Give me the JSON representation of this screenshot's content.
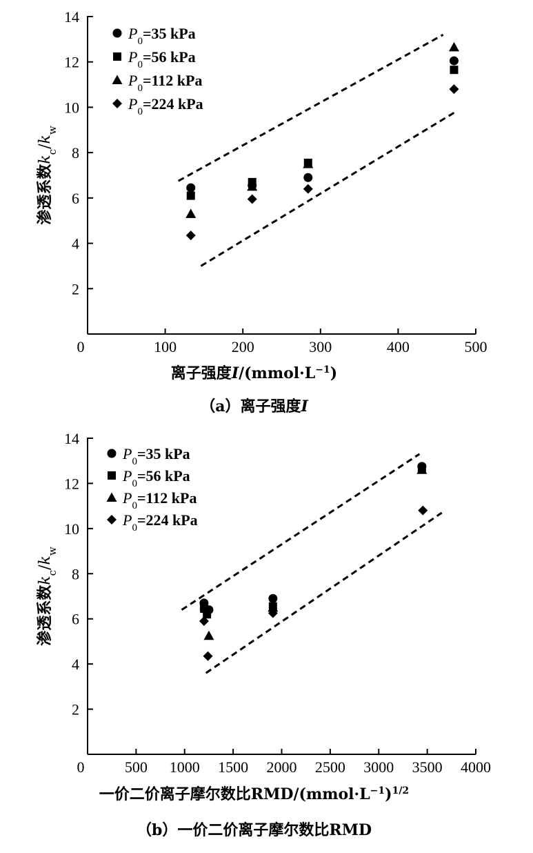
{
  "chart_data": [
    {
      "type": "scatter",
      "panel": "a",
      "caption": "（a）离子强度I",
      "xlabel": "离子强度I/(mmol·L⁻¹)",
      "ylabel": "渗透系数kc/kw",
      "xlim": [
        0,
        500
      ],
      "ylim": [
        0,
        14
      ],
      "xticks": [
        0,
        100,
        200,
        300,
        400,
        500
      ],
      "yticks": [
        2,
        4,
        6,
        8,
        10,
        12,
        14
      ],
      "legend_position": "top-left",
      "series": [
        {
          "name": "P0=35 kPa",
          "marker": "circle",
          "x": [
            133,
            212,
            284,
            472
          ],
          "y": [
            6.45,
            6.55,
            6.9,
            12.05
          ]
        },
        {
          "name": "P0=56 kPa",
          "marker": "square",
          "x": [
            133,
            212,
            284,
            472
          ],
          "y": [
            6.1,
            6.7,
            7.55,
            11.65
          ]
        },
        {
          "name": "P0=112 kPa",
          "marker": "triangle",
          "x": [
            133,
            212,
            284,
            472
          ],
          "y": [
            5.3,
            6.5,
            7.5,
            12.65
          ]
        },
        {
          "name": "P0=224 kPa",
          "marker": "diamond",
          "x": [
            133,
            212,
            284,
            472
          ],
          "y": [
            4.35,
            5.95,
            6.4,
            10.8
          ]
        }
      ],
      "bounds": [
        {
          "name": "upper",
          "x": [
            117,
            458
          ],
          "y": [
            6.75,
            13.2
          ]
        },
        {
          "name": "lower",
          "x": [
            146,
            474
          ],
          "y": [
            3.0,
            9.8
          ]
        }
      ]
    },
    {
      "type": "scatter",
      "panel": "b",
      "caption": "（b）一价二价离子摩尔数比RMD",
      "xlabel": "一价二价离子摩尔数比RMD/(mmol·L⁻¹)^1/2",
      "ylabel": "渗透系数kc/kw",
      "xlim": [
        0,
        4000
      ],
      "ylim": [
        0,
        14
      ],
      "xticks": [
        0,
        500,
        1000,
        1500,
        2000,
        2500,
        3000,
        3500,
        4000
      ],
      "yticks": [
        2,
        4,
        6,
        8,
        10,
        12,
        14
      ],
      "legend_position": "top-left",
      "series": [
        {
          "name": "P0=35 kPa",
          "marker": "circle",
          "x": [
            1200,
            1250,
            1910,
            3445
          ],
          "y": [
            6.7,
            6.4,
            6.9,
            12.75
          ]
        },
        {
          "name": "P0=56 kPa",
          "marker": "square",
          "x": [
            1200,
            1230,
            1910,
            3445
          ],
          "y": [
            6.5,
            6.2,
            6.55,
            12.65
          ]
        },
        {
          "name": "P0=112 kPa",
          "marker": "triangle",
          "x": [
            1210,
            1250,
            1910,
            3445
          ],
          "y": [
            6.45,
            5.25,
            6.5,
            12.6
          ]
        },
        {
          "name": "P0=224 kPa",
          "marker": "diamond",
          "x": [
            1200,
            1240,
            1910,
            3455
          ],
          "y": [
            5.9,
            4.35,
            6.25,
            10.8
          ]
        }
      ],
      "bounds": [
        {
          "name": "upper",
          "x": [
            970,
            3420
          ],
          "y": [
            6.4,
            13.3
          ]
        },
        {
          "name": "lower",
          "x": [
            1220,
            3650
          ],
          "y": [
            3.6,
            10.7
          ]
        }
      ]
    }
  ]
}
